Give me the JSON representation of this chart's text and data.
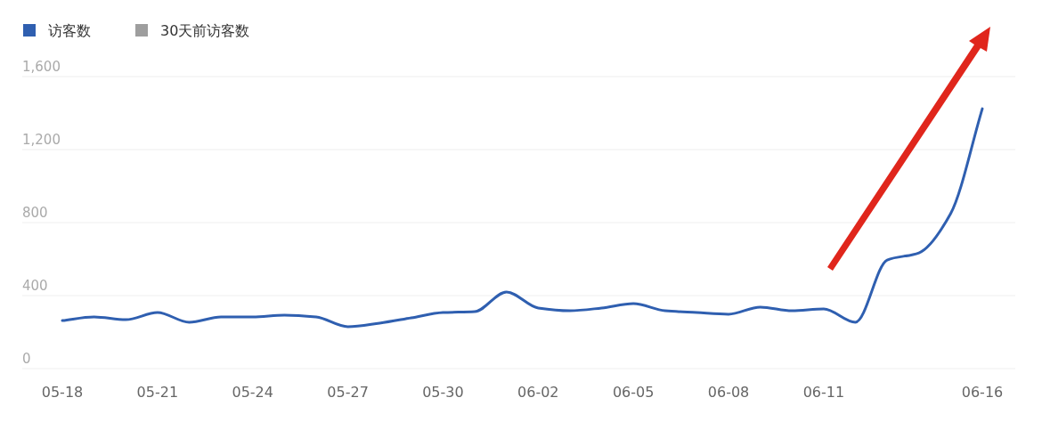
{
  "chart_data": {
    "type": "line",
    "categories": [
      "05-18",
      null,
      null,
      "05-21",
      null,
      null,
      "05-24",
      null,
      null,
      "05-27",
      null,
      null,
      "05-30",
      null,
      null,
      "06-02",
      null,
      null,
      "06-05",
      null,
      null,
      "06-08",
      null,
      null,
      "06-11",
      null,
      null,
      null,
      null,
      "06-16"
    ],
    "series": [
      {
        "name": "访客数",
        "color": "#2f5fb0",
        "values": [
          263,
          283,
          268,
          307,
          254,
          283,
          283,
          293,
          283,
          229,
          249,
          278,
          307,
          312,
          420,
          332,
          317,
          332,
          356,
          317,
          307,
          298,
          337,
          317,
          327,
          254,
          595,
          634,
          849,
          1424
        ]
      },
      {
        "name": "30天前访客数",
        "color": "#9e9e9e",
        "values": [
          null,
          null,
          null,
          null,
          null,
          null,
          null,
          null,
          null,
          null,
          null,
          null,
          null,
          null,
          null,
          null,
          null,
          null,
          null,
          null,
          null,
          null,
          null,
          null,
          null,
          null,
          null,
          null,
          null,
          null
        ]
      }
    ],
    "ylim": [
      0,
      1600
    ],
    "yticks": [
      0,
      {
        "value": 400,
        "label": "400"
      },
      {
        "value": 800,
        "label": "800"
      },
      {
        "value": 1200,
        "label": "1,200"
      },
      {
        "value": 1600,
        "label": "1,600"
      }
    ],
    "grid": "y",
    "legend": "top left",
    "marker": "none",
    "line_style": "solid"
  }
}
